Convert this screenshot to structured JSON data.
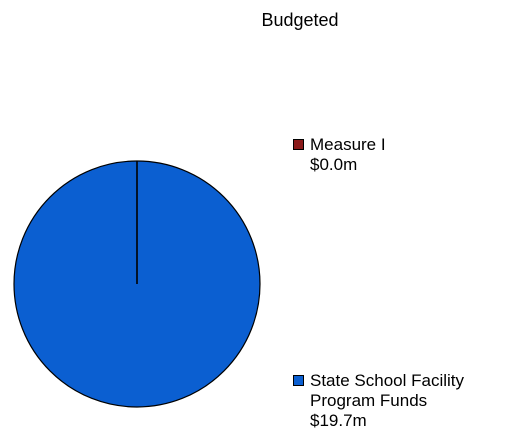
{
  "chart_data": {
    "type": "pie",
    "title": "Budgeted",
    "slices": [
      {
        "label_lines": [
          "Measure I",
          "$0.0m"
        ],
        "value": 0.0,
        "color": "#8B1A1A"
      },
      {
        "label_lines": [
          "State School Facility",
          "Program Funds",
          "$19.7m"
        ],
        "value": 19.7,
        "color": "#0B5FD1"
      }
    ],
    "legend_position": "right"
  }
}
